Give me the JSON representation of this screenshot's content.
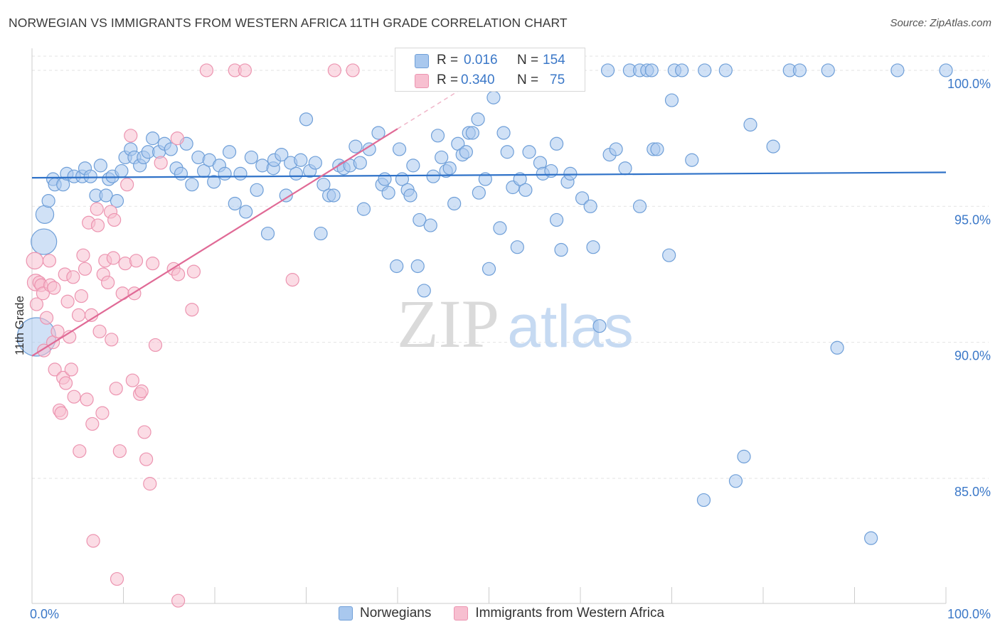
{
  "title": "NORWEGIAN VS IMMIGRANTS FROM WESTERN AFRICA 11TH GRADE CORRELATION CHART",
  "source": "Source: ZipAtlas.com",
  "watermark": {
    "zip": "ZIP",
    "atlas": "atlas"
  },
  "colors": {
    "blue_fill": "#a9c8ee",
    "blue_stroke": "#6f9fd8",
    "blue_line": "#2f72c8",
    "pink_fill": "#f7bfd0",
    "pink_stroke": "#ec94b0",
    "pink_line": "#e06a96",
    "axis_label": "#3b78c8",
    "grid": "#e3e3e3"
  },
  "stats": {
    "r_label": "R =",
    "n_label": "N =",
    "series1": {
      "r": "0.016",
      "n": "154"
    },
    "series2": {
      "r": "0.340",
      "n": "75"
    }
  },
  "chart_data": {
    "type": "scatter",
    "title": "NORWEGIAN VS IMMIGRANTS FROM WESTERN AFRICA 11TH GRADE CORRELATION CHART",
    "xlabel": "",
    "ylabel": "11th Grade",
    "xlim": [
      0,
      100
    ],
    "ylim": [
      80.4,
      100.6
    ],
    "x_tick_labels": [
      "0.0%",
      "100.0%"
    ],
    "y_tick_labels": [
      "100.0%",
      "95.0%",
      "90.0%",
      "85.0%"
    ],
    "y_ticks": [
      100,
      95,
      90,
      85
    ],
    "legend": [
      "Norwegians",
      "Immigrants from Western Africa"
    ],
    "series": [
      {
        "name": "Norwegians",
        "trend": {
          "x": [
            0,
            100
          ],
          "y": [
            96.05,
            96.25
          ]
        },
        "points": [
          [
            0.5,
            90.2,
            3
          ],
          [
            1.3,
            93.7,
            2
          ],
          [
            1.4,
            94.7,
            1.4
          ],
          [
            1.8,
            95.2,
            1
          ],
          [
            2.3,
            96.0,
            1
          ],
          [
            2.5,
            95.8,
            1
          ],
          [
            3.4,
            95.8,
            1
          ],
          [
            3.8,
            96.2,
            1
          ],
          [
            4.6,
            96.1,
            1
          ],
          [
            5.5,
            96.1,
            1
          ],
          [
            5.8,
            96.4,
            1
          ],
          [
            6.4,
            96.1,
            1
          ],
          [
            7.0,
            95.4,
            1
          ],
          [
            7.5,
            96.5,
            1
          ],
          [
            8.1,
            95.4,
            1
          ],
          [
            8.4,
            96.0,
            1
          ],
          [
            8.8,
            96.1,
            1
          ],
          [
            9.3,
            95.2,
            1
          ],
          [
            9.8,
            96.3,
            1
          ],
          [
            10.2,
            96.8,
            1
          ],
          [
            10.8,
            97.1,
            1
          ],
          [
            11.2,
            96.8,
            1
          ],
          [
            11.8,
            96.5,
            1
          ],
          [
            12.2,
            96.8,
            1
          ],
          [
            12.7,
            97.0,
            1
          ],
          [
            13.2,
            97.5,
            1
          ],
          [
            13.9,
            97.0,
            1
          ],
          [
            14.5,
            97.3,
            1
          ],
          [
            15.2,
            97.1,
            1
          ],
          [
            15.8,
            96.4,
            1
          ],
          [
            16.3,
            96.2,
            1
          ],
          [
            16.9,
            97.3,
            1
          ],
          [
            17.5,
            95.8,
            1
          ],
          [
            18.2,
            96.8,
            1
          ],
          [
            18.8,
            96.3,
            1
          ],
          [
            19.4,
            96.7,
            1
          ],
          [
            19.9,
            95.9,
            1
          ],
          [
            20.5,
            96.5,
            1
          ],
          [
            21.1,
            96.2,
            1
          ],
          [
            21.6,
            97.0,
            1
          ],
          [
            22.2,
            95.1,
            1
          ],
          [
            22.8,
            96.2,
            1
          ],
          [
            23.4,
            94.8,
            1
          ],
          [
            24.0,
            96.8,
            1
          ],
          [
            24.6,
            95.6,
            1
          ],
          [
            25.2,
            96.5,
            1
          ],
          [
            25.8,
            94.0,
            1
          ],
          [
            26.4,
            96.4,
            1
          ],
          [
            26.5,
            96.7,
            1
          ],
          [
            27.3,
            96.9,
            1
          ],
          [
            27.8,
            95.4,
            1
          ],
          [
            28.3,
            96.6,
            1
          ],
          [
            28.9,
            96.2,
            1
          ],
          [
            29.4,
            96.7,
            1
          ],
          [
            30.0,
            98.2,
            1
          ],
          [
            30.4,
            96.3,
            1
          ],
          [
            31.0,
            96.6,
            1
          ],
          [
            31.6,
            94.0,
            1
          ],
          [
            31.9,
            95.8,
            1
          ],
          [
            32.5,
            95.4,
            1
          ],
          [
            33.0,
            95.4,
            1
          ],
          [
            33.6,
            96.5,
            1
          ],
          [
            34.1,
            96.4,
            1
          ],
          [
            34.8,
            96.5,
            1
          ],
          [
            35.4,
            97.2,
            1
          ],
          [
            35.9,
            96.6,
            1
          ],
          [
            36.3,
            94.9,
            1
          ],
          [
            36.9,
            97.1,
            1
          ],
          [
            37.9,
            97.7,
            1
          ],
          [
            38.3,
            95.8,
            1
          ],
          [
            38.6,
            96.0,
            1
          ],
          [
            39.0,
            95.5,
            1
          ],
          [
            39.9,
            92.8,
            1
          ],
          [
            40.2,
            97.1,
            1
          ],
          [
            40.5,
            96.0,
            1
          ],
          [
            41.1,
            95.6,
            1
          ],
          [
            41.4,
            95.4,
            1
          ],
          [
            41.7,
            96.5,
            1
          ],
          [
            42.2,
            92.8,
            1
          ],
          [
            42.4,
            94.5,
            1
          ],
          [
            42.9,
            91.9,
            1
          ],
          [
            43.6,
            94.3,
            1
          ],
          [
            43.9,
            96.1,
            1
          ],
          [
            44.4,
            97.6,
            1
          ],
          [
            44.8,
            96.8,
            1
          ],
          [
            45.3,
            96.3,
            1
          ],
          [
            45.7,
            96.4,
            1
          ],
          [
            46.2,
            95.1,
            1
          ],
          [
            46.6,
            97.3,
            1
          ],
          [
            47.1,
            96.9,
            1
          ],
          [
            47.5,
            97.0,
            1
          ],
          [
            47.8,
            97.7,
            1
          ],
          [
            48.2,
            97.7,
            1
          ],
          [
            48.8,
            98.2,
            1
          ],
          [
            48.9,
            95.5,
            1
          ],
          [
            49.6,
            96.0,
            1
          ],
          [
            50.0,
            92.7,
            1
          ],
          [
            50.5,
            99.0,
            1
          ],
          [
            51.2,
            94.2,
            1
          ],
          [
            51.6,
            97.7,
            1
          ],
          [
            52.0,
            97.0,
            1
          ],
          [
            52.6,
            95.7,
            1
          ],
          [
            53.1,
            93.5,
            1
          ],
          [
            53.4,
            96.0,
            1
          ],
          [
            54.0,
            95.6,
            1
          ],
          [
            54.4,
            97.0,
            1
          ],
          [
            55.6,
            96.6,
            1
          ],
          [
            55.9,
            96.2,
            1
          ],
          [
            56.8,
            96.3,
            1
          ],
          [
            57.4,
            97.3,
            1
          ],
          [
            57.4,
            94.5,
            1
          ],
          [
            57.9,
            93.4,
            1
          ],
          [
            58.6,
            95.9,
            1
          ],
          [
            58.9,
            96.2,
            1
          ],
          [
            60.2,
            95.3,
            1
          ],
          [
            61.1,
            95.0,
            1
          ],
          [
            61.4,
            93.5,
            1
          ],
          [
            62.1,
            90.6,
            1
          ],
          [
            63.0,
            100.0,
            1
          ],
          [
            63.2,
            96.9,
            1
          ],
          [
            63.9,
            97.1,
            1
          ],
          [
            64.9,
            96.4,
            1
          ],
          [
            65.4,
            100.0,
            1
          ],
          [
            66.5,
            100.0,
            1
          ],
          [
            66.5,
            95.0,
            1
          ],
          [
            67.3,
            100.0,
            1
          ],
          [
            67.8,
            100.0,
            1
          ],
          [
            68.0,
            97.1,
            1
          ],
          [
            68.4,
            97.1,
            1
          ],
          [
            69.7,
            93.2,
            1
          ],
          [
            70.0,
            98.9,
            1
          ],
          [
            70.3,
            100.0,
            1
          ],
          [
            71.1,
            100.0,
            1
          ],
          [
            72.2,
            96.7,
            1
          ],
          [
            73.6,
            100.0,
            1
          ],
          [
            73.5,
            84.2,
            1
          ],
          [
            75.9,
            100.0,
            1
          ],
          [
            77.0,
            84.9,
            1
          ],
          [
            77.9,
            85.8,
            1
          ],
          [
            78.6,
            98.0,
            1
          ],
          [
            81.1,
            97.2,
            1
          ],
          [
            82.9,
            100.0,
            1
          ],
          [
            84.0,
            100.0,
            1
          ],
          [
            87.1,
            100.0,
            1
          ],
          [
            88.1,
            89.8,
            1
          ],
          [
            91.8,
            82.8,
            1
          ],
          [
            94.7,
            100.0,
            1
          ],
          [
            100.0,
            100.0,
            1
          ]
        ]
      },
      {
        "name": "Immigrants from Western Africa",
        "trend": {
          "x": [
            0,
            40
          ],
          "y": [
            89.5,
            97.85
          ]
        },
        "trend_dashed": {
          "x": [
            40,
            51
          ],
          "y": [
            97.85,
            100.15
          ]
        },
        "points": [
          [
            0.3,
            93.0,
            1.3
          ],
          [
            0.4,
            92.2,
            1.3
          ],
          [
            0.5,
            91.4,
            1
          ],
          [
            0.8,
            92.2,
            1
          ],
          [
            1.0,
            92.1,
            1
          ],
          [
            1.2,
            91.8,
            1
          ],
          [
            1.3,
            89.7,
            1
          ],
          [
            1.6,
            90.9,
            1
          ],
          [
            1.9,
            93.0,
            1
          ],
          [
            2.0,
            92.1,
            1
          ],
          [
            2.3,
            90.0,
            1
          ],
          [
            2.4,
            92.0,
            1
          ],
          [
            2.5,
            89.0,
            1
          ],
          [
            2.8,
            90.4,
            1
          ],
          [
            3.0,
            87.5,
            1
          ],
          [
            3.2,
            87.4,
            1
          ],
          [
            3.4,
            88.7,
            1
          ],
          [
            3.6,
            92.5,
            1
          ],
          [
            3.7,
            88.5,
            1
          ],
          [
            3.9,
            91.5,
            1
          ],
          [
            4.1,
            90.2,
            1
          ],
          [
            4.3,
            89.0,
            1
          ],
          [
            4.5,
            92.4,
            1
          ],
          [
            4.6,
            88.0,
            1
          ],
          [
            5.1,
            91.0,
            1
          ],
          [
            5.2,
            86.0,
            1
          ],
          [
            5.4,
            91.7,
            1
          ],
          [
            5.6,
            93.2,
            1
          ],
          [
            5.8,
            92.7,
            1
          ],
          [
            6.0,
            87.9,
            1
          ],
          [
            6.2,
            94.4,
            1
          ],
          [
            6.5,
            91.0,
            1
          ],
          [
            6.6,
            87.0,
            1
          ],
          [
            6.7,
            82.7,
            1
          ],
          [
            7.1,
            94.9,
            1
          ],
          [
            7.2,
            94.3,
            1
          ],
          [
            7.4,
            90.4,
            1
          ],
          [
            7.7,
            87.4,
            1
          ],
          [
            7.8,
            92.5,
            1
          ],
          [
            8.0,
            93.0,
            1
          ],
          [
            8.3,
            92.2,
            1
          ],
          [
            8.6,
            94.8,
            1
          ],
          [
            8.7,
            90.1,
            1
          ],
          [
            8.9,
            93.1,
            1
          ],
          [
            9.0,
            94.5,
            1
          ],
          [
            9.2,
            88.3,
            1
          ],
          [
            9.3,
            81.3,
            1
          ],
          [
            9.6,
            86.0,
            1
          ],
          [
            9.9,
            91.8,
            1
          ],
          [
            10.2,
            92.9,
            1
          ],
          [
            10.4,
            95.8,
            1
          ],
          [
            10.8,
            97.6,
            1
          ],
          [
            11.0,
            88.6,
            1
          ],
          [
            11.2,
            91.8,
            1
          ],
          [
            11.4,
            93.0,
            1
          ],
          [
            11.8,
            88.1,
            1
          ],
          [
            12.0,
            88.2,
            1
          ],
          [
            12.3,
            86.7,
            1
          ],
          [
            12.5,
            85.7,
            1
          ],
          [
            12.9,
            84.8,
            1
          ],
          [
            13.2,
            92.9,
            1
          ],
          [
            13.5,
            89.9,
            1
          ],
          [
            14.1,
            96.6,
            1
          ],
          [
            15.5,
            92.7,
            1
          ],
          [
            16.0,
            80.5,
            1
          ],
          [
            16.0,
            92.5,
            1
          ],
          [
            15.9,
            97.5,
            1
          ],
          [
            17.7,
            92.6,
            1
          ],
          [
            17.5,
            91.2,
            1
          ],
          [
            19.1,
            100.0,
            1
          ],
          [
            22.2,
            100.0,
            1
          ],
          [
            23.3,
            100.0,
            1
          ],
          [
            28.5,
            92.3,
            1
          ],
          [
            33.1,
            100.0,
            1
          ],
          [
            35.1,
            100.0,
            1
          ]
        ]
      }
    ]
  }
}
